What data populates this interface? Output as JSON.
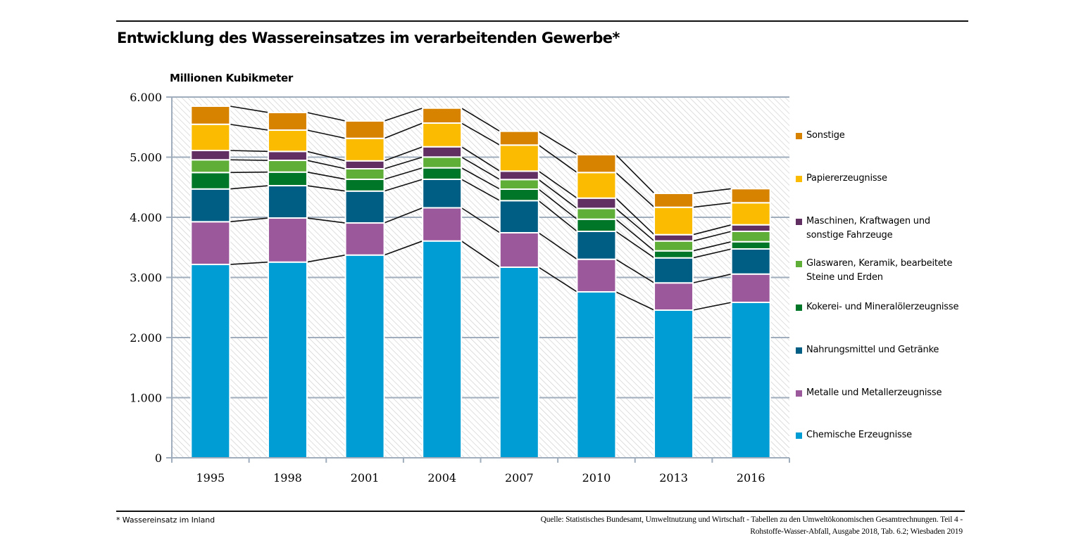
{
  "header": {
    "title": "Entwicklung des Wassereinsatzes im verarbeitenden Gewerbe*"
  },
  "footer": {
    "footnote": "* Wassereinsatz im Inland",
    "source": "Quelle: Statistisches Bundesamt, Umweltnutzung und Wirtschaft - Tabellen zu den Umweltökonomischen Gesamtrechnungen. Teil 4 -\nRohstoffe-Wasser-Abfall, Ausgabe 2018, Tab. 6.2; Wiesbaden 2019"
  },
  "chart_data": {
    "type": "bar",
    "stacked": true,
    "title": "Entwicklung des Wassereinsatzes im verarbeitenden Gewerbe*",
    "xlabel": "",
    "ylabel": "Millionen Kubikmeter",
    "ylim": [
      0,
      6000
    ],
    "yticks": [
      0,
      1000,
      2000,
      3000,
      4000,
      5000,
      6000
    ],
    "ytick_labels": [
      "0",
      "1.000",
      "2.000",
      "3.000",
      "4.000",
      "5.000",
      "6.000"
    ],
    "grid": true,
    "legend_position": "right",
    "connector_lines": true,
    "categories": [
      "1995",
      "1998",
      "2001",
      "2004",
      "2007",
      "2010",
      "2013",
      "2016"
    ],
    "series": [
      {
        "name": "Chemische Erzeugnisse",
        "color": "#009cd4",
        "values": [
          3216,
          3255,
          3372,
          3606,
          3170,
          2760,
          2456,
          2585
        ]
      },
      {
        "name": "Metalle und Metallerzeugnisse",
        "color": "#9b589b",
        "values": [
          710,
          733,
          534,
          552,
          573,
          542,
          453,
          471
        ]
      },
      {
        "name": "Nahrungsmittel und Getränke",
        "color": "#005e85",
        "values": [
          545,
          538,
          530,
          474,
          534,
          464,
          416,
          418
        ]
      },
      {
        "name": "Kokerei- und Mineralölerzeugnisse",
        "color": "#007629",
        "values": [
          274,
          226,
          196,
          191,
          191,
          202,
          117,
          120
        ]
      },
      {
        "name": "Glaswaren, Keramik, bearbeitete\nSteine und Erden",
        "color": "#5fae38",
        "values": [
          211,
          195,
          175,
          179,
          160,
          180,
          164,
          172
        ]
      },
      {
        "name": "Maschinen, Kraftwagen und\nsonstige Fahrzeuge",
        "color": "#622f63",
        "values": [
          155,
          149,
          132,
          171,
          140,
          171,
          105,
          109
        ]
      },
      {
        "name": "Papiererzeugnisse",
        "color": "#fabb00",
        "values": [
          436,
          354,
          374,
          394,
          433,
          426,
          456,
          367
        ]
      },
      {
        "name": "Sonstige",
        "color": "#d78300",
        "values": [
          301,
          293,
          289,
          249,
          230,
          296,
          231,
          234
        ]
      }
    ]
  }
}
